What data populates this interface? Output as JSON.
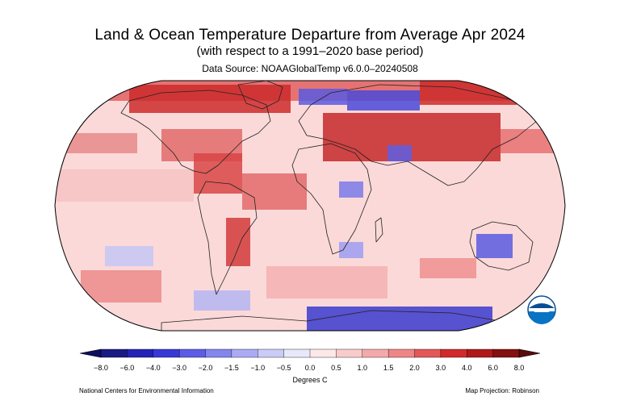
{
  "title": "Land & Ocean Temperature Departure from Average Apr 2024",
  "subtitle": "(with respect to a 1991–2020 base period)",
  "source": "Data Source: NOAAGlobalTemp v6.0.0–20240508",
  "colorbar": {
    "ticks": [
      "−8.0",
      "−6.0",
      "−4.0",
      "−3.0",
      "−2.0",
      "−1.5",
      "−1.0",
      "−0.5",
      "0.0",
      "0.5",
      "1.0",
      "1.5",
      "2.0",
      "3.0",
      "4.0",
      "6.0",
      "8.0"
    ],
    "colors": [
      "#1a1a85",
      "#2323b8",
      "#3838d8",
      "#5c5ce6",
      "#8585ee",
      "#aaaaf4",
      "#cbcbf8",
      "#e8e8fb",
      "#fde8e8",
      "#f9cccc",
      "#f4aaaa",
      "#ee8585",
      "#e45858",
      "#d22a2a",
      "#b01818",
      "#851010"
    ],
    "unit_label": "Degrees C"
  },
  "logo": {
    "icon": "noaa-logo-icon",
    "text": "NOAA"
  },
  "footer_left": "National Centers for Environmental Information",
  "footer_right": "Map Projection: Robinson",
  "colors": {
    "ocean_base": "#fbd3d3",
    "warm_strong": "#cc2a2a",
    "warm": "#e96a6a",
    "cool": "#dadaf6",
    "cold": "#4a4ad8",
    "coast": "#222222"
  }
}
